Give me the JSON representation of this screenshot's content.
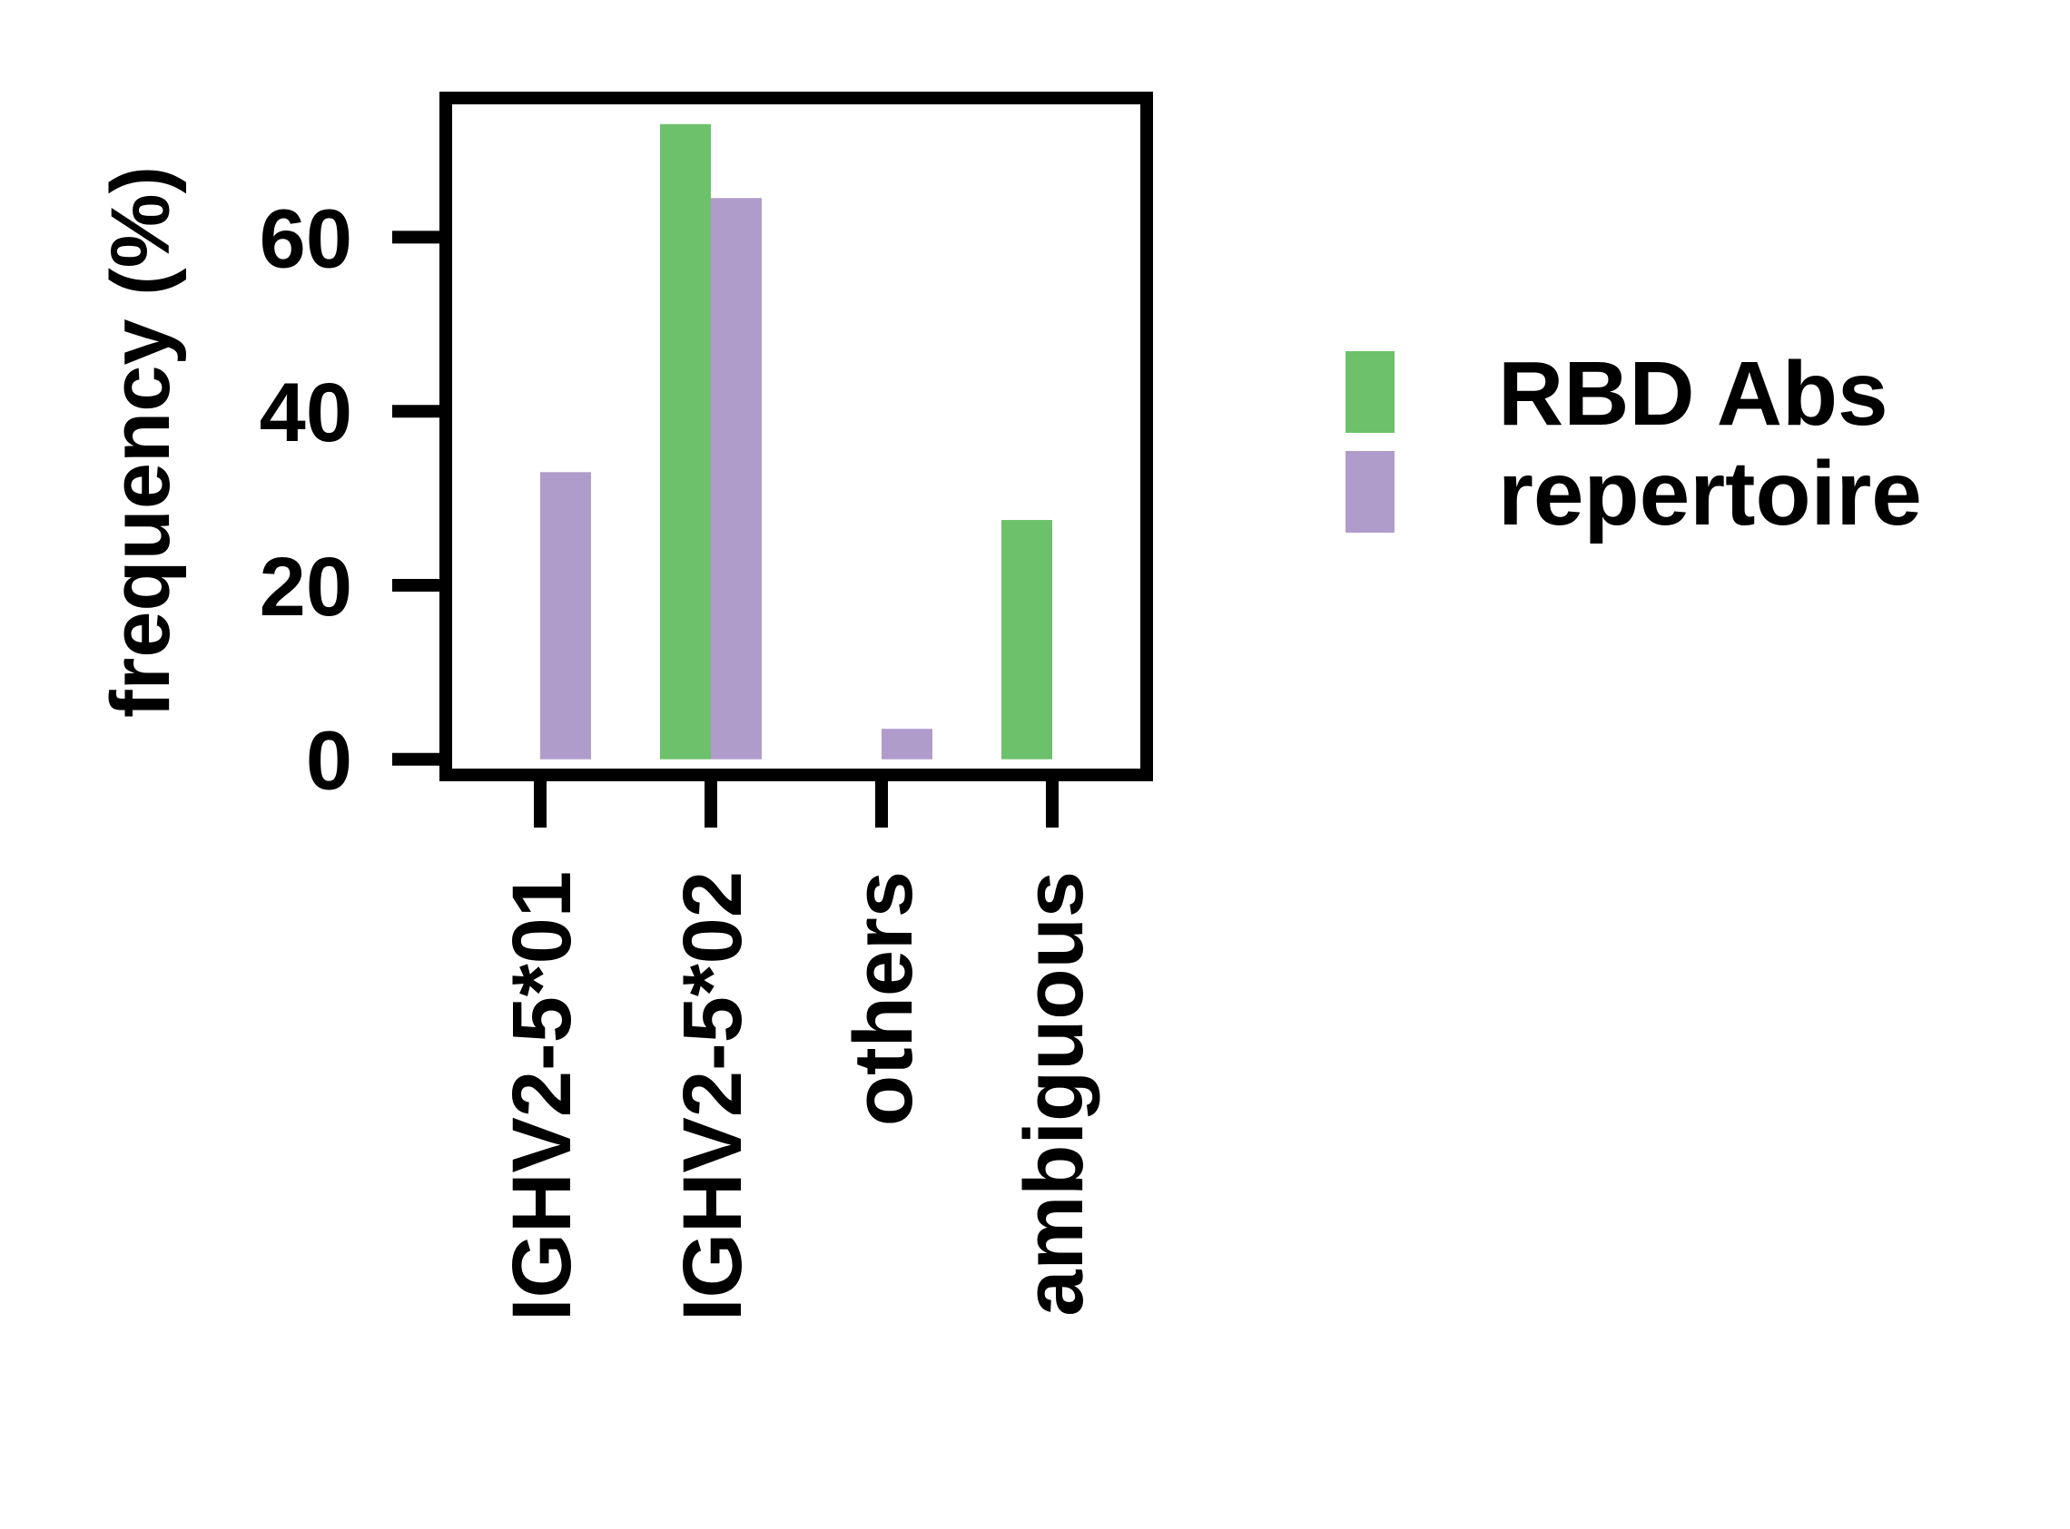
{
  "chart_data": {
    "type": "bar",
    "title": "",
    "xlabel": "",
    "ylabel": "frequency (%)",
    "categories": [
      "IGHV2-5*01",
      "IGHV2-5*02",
      "others",
      "ambiguous"
    ],
    "series": [
      {
        "name": "RBD Abs",
        "color": "#6cc16a",
        "values": [
          0,
          73,
          0,
          27.5
        ]
      },
      {
        "name": "repertoire",
        "color": "#b09ccb",
        "values": [
          33,
          64.5,
          3.5,
          0
        ]
      }
    ],
    "yticks": [
      "0",
      "20",
      "40",
      "60"
    ],
    "ytick_values": [
      0,
      20,
      40,
      60
    ],
    "ylim": [
      -1.8,
      76
    ],
    "grid": false,
    "legend_position": "right"
  }
}
